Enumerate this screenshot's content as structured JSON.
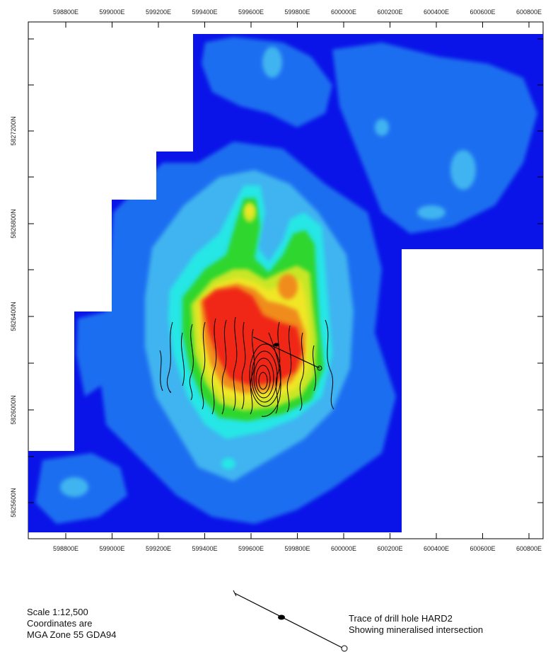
{
  "axes": {
    "x_ticks": [
      "598800E",
      "599000E",
      "599200E",
      "599400E",
      "599600E",
      "599800E",
      "600000E",
      "600200E",
      "600400E",
      "600600E",
      "600800E"
    ],
    "y_ticks": [
      "5827200N",
      "5826800N",
      "5826400N",
      "5826000N",
      "5825600N"
    ]
  },
  "legend": {
    "scale": "Scale 1:12,500",
    "coords_line1": "Coordinates are",
    "coords_line2": "MGA Zone 55 GDA94",
    "drill_line1": "Trace of drill hole HARD2",
    "drill_line2": "Showing mineralised intersection"
  },
  "colors": {
    "background_blue": "#0a14e8",
    "mid_blue": "#1e6ef0",
    "light_blue": "#3fb4f0",
    "cyan": "#28e6e6",
    "green": "#2fd62f",
    "yellow_green": "#c8e628",
    "yellow": "#f0e628",
    "orange": "#f08c1e",
    "red": "#f02814"
  }
}
